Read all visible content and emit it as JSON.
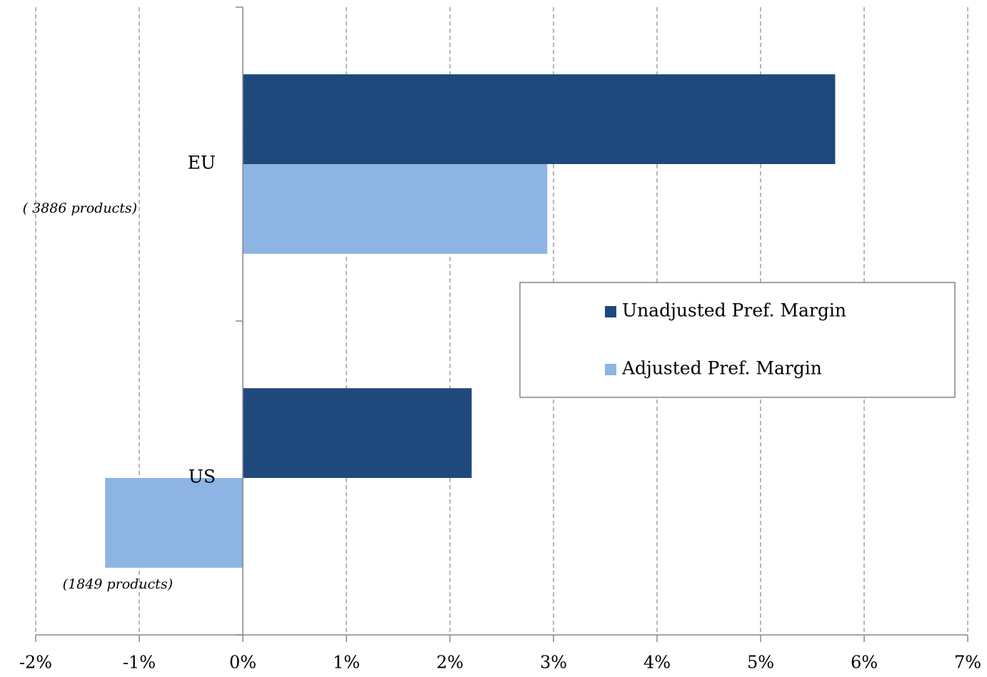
{
  "chart_data": {
    "type": "bar",
    "orientation": "horizontal",
    "categories": [
      "EU",
      "US"
    ],
    "annotations": [
      "( 3886 products)",
      "(1849 products)"
    ],
    "series": [
      {
        "name": "Unadjusted Pref. Margin",
        "color": "#1f497d",
        "values": [
          5.72,
          2.21
        ]
      },
      {
        "name": "Adjusted Pref. Margin",
        "color": "#8eb4e3",
        "values": [
          2.94,
          -1.33
        ]
      }
    ],
    "xlim": [
      -2,
      7
    ],
    "xticks": [
      {
        "value": -2,
        "label": "-2%"
      },
      {
        "value": -1,
        "label": "-1%"
      },
      {
        "value": 0,
        "label": "0%"
      },
      {
        "value": 1,
        "label": "1%"
      },
      {
        "value": 2,
        "label": "2%"
      },
      {
        "value": 3,
        "label": "3%"
      },
      {
        "value": 4,
        "label": "4%"
      },
      {
        "value": 5,
        "label": "5%"
      },
      {
        "value": 6,
        "label": "6%"
      },
      {
        "value": 7,
        "label": "7%"
      }
    ],
    "grid": true,
    "legend_position": "right"
  }
}
